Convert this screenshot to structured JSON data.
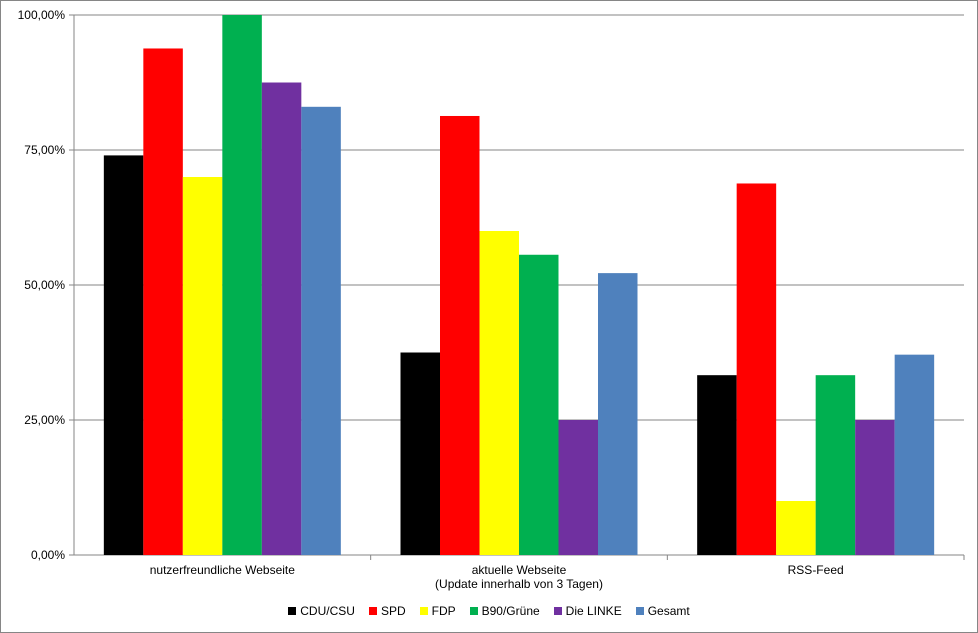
{
  "chart_data": {
    "type": "bar",
    "categories": [
      [
        "nutzerfreundliche Webseite"
      ],
      [
        "aktuelle Webseite",
        "(Update innerhalb von 3 Tagen)"
      ],
      [
        "RSS-Feed"
      ]
    ],
    "series": [
      {
        "name": "CDU/CSU",
        "color": "#000000",
        "values": [
          74,
          37.5,
          33.3
        ]
      },
      {
        "name": "SPD",
        "color": "#ff0000",
        "values": [
          93.8,
          81.3,
          68.8
        ]
      },
      {
        "name": "FDP",
        "color": "#ffff00",
        "values": [
          70,
          60,
          10
        ]
      },
      {
        "name": "B90/Grüne",
        "color": "#00b050",
        "values": [
          100,
          55.6,
          33.3
        ]
      },
      {
        "name": "Die LINKE",
        "color": "#7030a0",
        "values": [
          87.5,
          25,
          25
        ]
      },
      {
        "name": "Gesamt",
        "color": "#4f81bd",
        "values": [
          83,
          52.2,
          37.1
        ]
      }
    ],
    "ylim": [
      0,
      100
    ],
    "yticks": [
      "0,00%",
      "25,00%",
      "50,00%",
      "75,00%",
      "100,00%"
    ],
    "grid": true,
    "legend_position": "bottom"
  }
}
